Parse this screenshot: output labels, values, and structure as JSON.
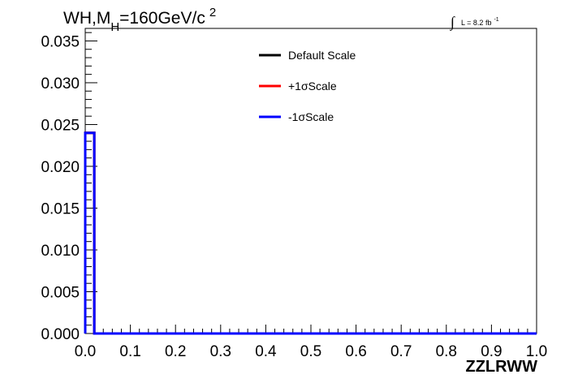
{
  "chart_data": {
    "type": "line",
    "title": {
      "main": "WH,M",
      "sub": "H",
      "rest": "=160GeV/c",
      "sup": "2"
    },
    "lumi": {
      "symbol": "∫",
      "text": "L = 8.2 fb",
      "sup": "-1"
    },
    "xlabel": "ZZLRWW",
    "ylabel": "",
    "xlim": [
      0.0,
      1.0
    ],
    "ylim": [
      0.0,
      0.0365
    ],
    "x_ticks": [
      "0.0",
      "0.1",
      "0.2",
      "0.3",
      "0.4",
      "0.5",
      "0.6",
      "0.7",
      "0.8",
      "0.9",
      "1.0"
    ],
    "y_ticks": [
      "0.000",
      "0.005",
      "0.010",
      "0.015",
      "0.020",
      "0.025",
      "0.030",
      "0.035"
    ],
    "grid": false,
    "legend_position": "top-center",
    "bin_edges": [
      0.0,
      0.02,
      0.04,
      0.06,
      0.08,
      0.1,
      0.12,
      0.14,
      0.16,
      0.18,
      0.2,
      0.22,
      0.24,
      0.26,
      0.28,
      0.3,
      0.32,
      0.34,
      0.36,
      0.38,
      0.4,
      0.42,
      0.44,
      0.46,
      0.48,
      0.5,
      0.52,
      0.54,
      0.56,
      0.58,
      0.6,
      0.62,
      0.64,
      0.66,
      0.68,
      0.7,
      0.72,
      0.74,
      0.76,
      0.78,
      0.8,
      0.82,
      0.84,
      0.86,
      0.88,
      0.9,
      0.92,
      0.94,
      0.96,
      0.98,
      1.0
    ],
    "series": [
      {
        "name": "Default Scale",
        "color": "#000000",
        "values": [
          0.024,
          0,
          0,
          0,
          0,
          0,
          0,
          0,
          0,
          0,
          0,
          0,
          0,
          0,
          0,
          0,
          0,
          0,
          0,
          0,
          0,
          0,
          0,
          0,
          0,
          0,
          0,
          0,
          0,
          0,
          0,
          0,
          0,
          0,
          0,
          0,
          0,
          0,
          0,
          0,
          0,
          0,
          0,
          0,
          0,
          0,
          0,
          0,
          0,
          0
        ]
      },
      {
        "name": "+1σScale",
        "color": "#ff0000",
        "values": [
          0.024,
          0,
          0,
          0,
          0,
          0,
          0,
          0,
          0,
          0,
          0,
          0,
          0,
          0,
          0,
          0,
          0,
          0,
          0,
          0,
          0,
          0,
          0,
          0,
          0,
          0,
          0,
          0,
          0,
          0,
          0,
          0,
          0,
          0,
          0,
          0,
          0,
          0,
          0,
          0,
          0,
          0,
          0,
          0,
          0,
          0,
          0,
          0,
          0,
          0
        ]
      },
      {
        "name": "-1σScale",
        "color": "#0000ff",
        "values": [
          0.024,
          0,
          0,
          0,
          0,
          0,
          0,
          0,
          0,
          0,
          0,
          0,
          0,
          0,
          0,
          0,
          0,
          0,
          0,
          0,
          0,
          0,
          0,
          0,
          0,
          0,
          0,
          0,
          0,
          0,
          0,
          0,
          0,
          0,
          0,
          0,
          0,
          0,
          0,
          0,
          0,
          0,
          0,
          0,
          0,
          0,
          0,
          0,
          0,
          0
        ]
      }
    ]
  }
}
